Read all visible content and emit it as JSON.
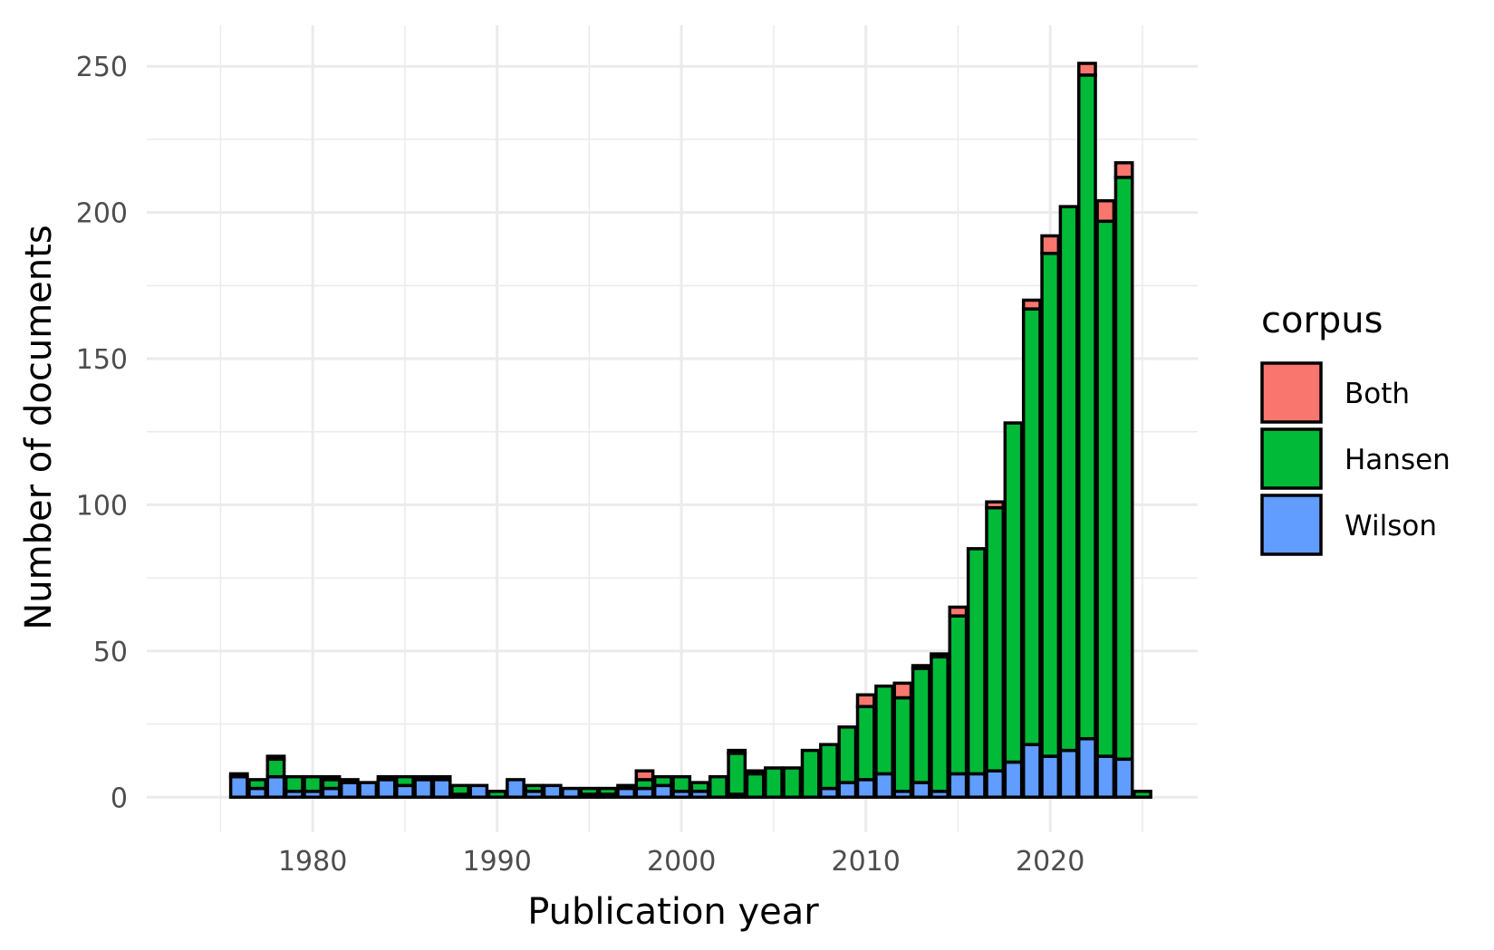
{
  "chart_data": {
    "type": "bar",
    "stacked": true,
    "xlabel": "Publication year",
    "ylabel": "Number of documents",
    "xlim": [
      1971,
      2028
    ],
    "ylim": [
      -12,
      264
    ],
    "x_ticks": [
      1980,
      1990,
      2000,
      2010,
      2020
    ],
    "y_ticks": [
      0,
      50,
      100,
      150,
      200,
      250
    ],
    "grid": true,
    "legend": {
      "title": "corpus",
      "position": "right",
      "entries": [
        "Both",
        "Hansen",
        "Wilson"
      ]
    },
    "colors": {
      "Both": "#F8766D",
      "Hansen": "#00BA38",
      "Wilson": "#619CFF",
      "outline": "#000000"
    },
    "x": [
      1976,
      1977,
      1978,
      1979,
      1980,
      1981,
      1982,
      1983,
      1984,
      1985,
      1986,
      1987,
      1988,
      1989,
      1990,
      1991,
      1992,
      1993,
      1994,
      1995,
      1996,
      1997,
      1998,
      1999,
      2000,
      2001,
      2002,
      2003,
      2004,
      2005,
      2006,
      2007,
      2008,
      2009,
      2010,
      2011,
      2012,
      2013,
      2014,
      2015,
      2016,
      2017,
      2018,
      2019,
      2020,
      2021,
      2022,
      2023,
      2024,
      2025
    ],
    "series": [
      {
        "name": "Wilson",
        "values": [
          7,
          3,
          7,
          2,
          2,
          3,
          5,
          5,
          6,
          4,
          6,
          6,
          1,
          4,
          0,
          6,
          2,
          4,
          3,
          1,
          1,
          3,
          3,
          4,
          2,
          2,
          0,
          1,
          0,
          0,
          0,
          0,
          3,
          5,
          6,
          8,
          2,
          5,
          2,
          8,
          8,
          9,
          12,
          18,
          14,
          16,
          20,
          14,
          13,
          0
        ]
      },
      {
        "name": "Hansen",
        "values": [
          1,
          3,
          6,
          5,
          5,
          3,
          1,
          0,
          1,
          3,
          1,
          1,
          3,
          0,
          2,
          0,
          2,
          0,
          0,
          2,
          2,
          1,
          3,
          3,
          5,
          3,
          7,
          14,
          8,
          10,
          10,
          16,
          15,
          19,
          25,
          30,
          32,
          39,
          46,
          54,
          77,
          90,
          116,
          149,
          172,
          186,
          227,
          183,
          199,
          2
        ]
      },
      {
        "name": "Both",
        "values": [
          0,
          0,
          1,
          0,
          0,
          1,
          0,
          0,
          0,
          0,
          0,
          0,
          0,
          0,
          0,
          0,
          0,
          0,
          0,
          0,
          0,
          0,
          3,
          0,
          0,
          0,
          0,
          1,
          1,
          0,
          0,
          0,
          0,
          0,
          4,
          0,
          5,
          1,
          1,
          3,
          0,
          2,
          0,
          3,
          6,
          0,
          4,
          7,
          5,
          0
        ]
      }
    ]
  }
}
